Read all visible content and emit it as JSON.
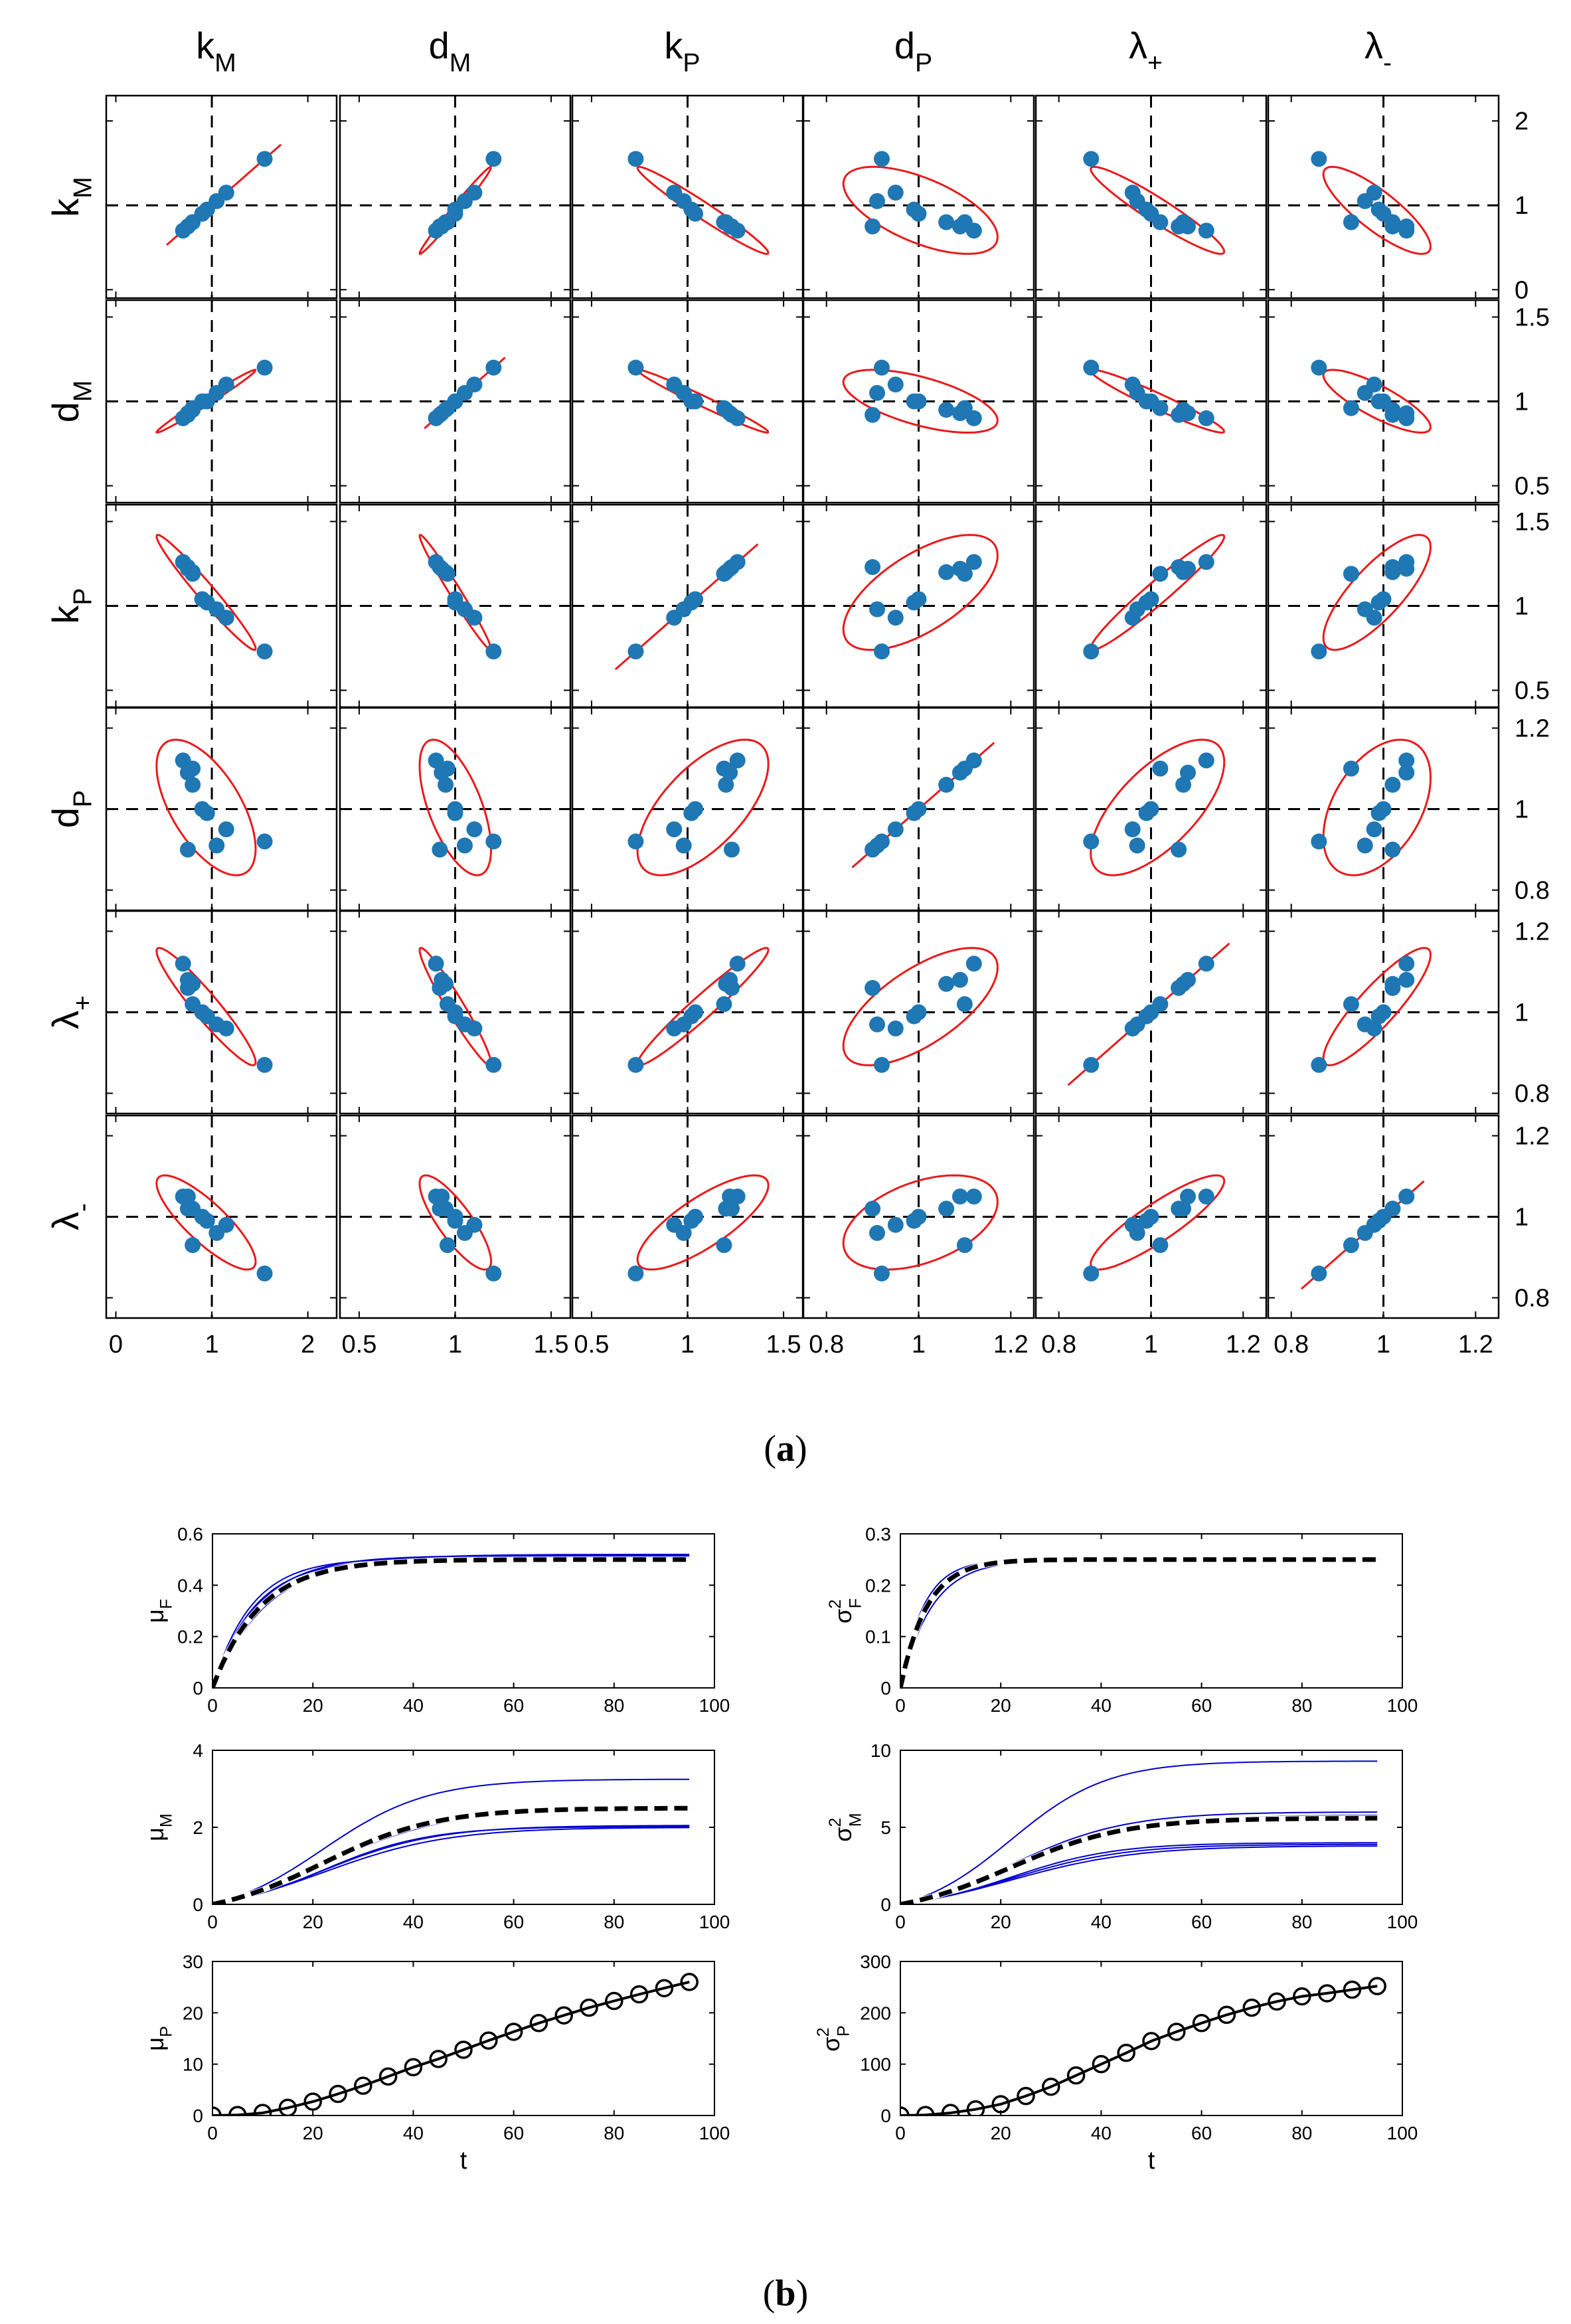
{
  "panel_labels": {
    "a_open": "(",
    "a_letter": "a",
    "a_close": ")",
    "b_open": "(",
    "b_letter": "b",
    "b_close": ")"
  },
  "colors": {
    "points": "#1f77b4",
    "ellipse": "#e8191b",
    "sim_curves": "#0000cc",
    "mean_curve": "#000000"
  },
  "chart_data": [
    {
      "type": "scatter",
      "panel": "a",
      "grid_layout": "6x6 scatter matrix with ellipses, dashed reference lines at 1",
      "params": [
        {
          "base": "k",
          "sub": "M",
          "greek": false
        },
        {
          "base": "d",
          "sub": "M",
          "greek": false
        },
        {
          "base": "k",
          "sub": "P",
          "greek": false
        },
        {
          "base": "d",
          "sub": "P",
          "greek": false
        },
        {
          "base": "λ",
          "sub": "+",
          "greek": true
        },
        {
          "base": "λ",
          "sub": "-",
          "greek": true
        }
      ],
      "ranges": [
        [
          -0.1,
          2.3
        ],
        [
          0.4,
          1.6
        ],
        [
          0.4,
          1.6
        ],
        [
          0.75,
          1.25
        ],
        [
          0.75,
          1.25
        ],
        [
          0.75,
          1.25
        ]
      ],
      "x_ticks": [
        [
          "0",
          "1",
          "2"
        ],
        [
          "0.5",
          "1",
          "1.5"
        ],
        [
          "0.5",
          "1",
          "1.5"
        ],
        [
          "0.8",
          "1",
          "1.2"
        ],
        [
          "0.8",
          "1",
          "1.2"
        ],
        [
          "0.8",
          "1",
          "1.2"
        ]
      ],
      "y_ticks": [
        [
          "0",
          "1",
          "2"
        ],
        [
          "0.5",
          "1",
          "1.5"
        ],
        [
          "0.5",
          "1",
          "1.5"
        ],
        [
          "0.8",
          "1",
          "1.2"
        ],
        [
          "0.8",
          "1",
          "1.2"
        ],
        [
          "0.8",
          "1",
          "1.2"
        ]
      ],
      "samples": [
        [
          1.55,
          1.2,
          0.73,
          0.92,
          0.87,
          0.86
        ],
        [
          1.15,
          1.1,
          0.93,
          0.95,
          0.96,
          0.98
        ],
        [
          1.05,
          1.05,
          0.98,
          0.91,
          0.97,
          0.96
        ],
        [
          0.95,
          1.0,
          1.02,
          0.99,
          0.99,
          0.99
        ],
        [
          0.9,
          1.0,
          1.04,
          1.0,
          1.0,
          1.0
        ],
        [
          0.8,
          0.95,
          1.2,
          1.06,
          1.07,
          1.02
        ],
        [
          0.75,
          0.93,
          1.22,
          1.09,
          1.08,
          1.05
        ],
        [
          0.7,
          0.9,
          1.26,
          1.12,
          1.12,
          1.05
        ],
        [
          0.75,
          0.92,
          1.23,
          0.9,
          1.06,
          1.02
        ],
        [
          0.8,
          0.96,
          1.19,
          1.1,
          1.02,
          0.93
        ]
      ]
    },
    {
      "type": "line",
      "panel": "b",
      "subplots": [
        {
          "ylabel": {
            "base": "μ",
            "sub": "F",
            "sup": ""
          },
          "ylim": [
            0,
            0.6
          ],
          "yticks": [
            "0",
            "0.2",
            "0.4",
            "0.6"
          ],
          "ytick_values": [
            0,
            0.2,
            0.4,
            0.6
          ],
          "xlim": [
            0,
            100
          ],
          "xticks": [
            "0",
            "20",
            "40",
            "60",
            "80",
            "100"
          ],
          "xlabel": "",
          "sim_curves": [
            {
              "plateau": 0.52,
              "rate": 0.09
            },
            {
              "plateau": 0.51,
              "rate": 0.1
            },
            {
              "plateau": 0.515,
              "rate": 0.11
            },
            {
              "plateau": 0.5,
              "rate": 0.12
            },
            {
              "plateau": 0.505,
              "rate": 0.13
            }
          ],
          "mean_curve": {
            "plateau": 0.5,
            "rate": 0.105
          }
        },
        {
          "ylabel": {
            "base": "σ",
            "sub": "F",
            "sup": "2"
          },
          "ylim": [
            0,
            0.3
          ],
          "yticks": [
            "0",
            "0.1",
            "0.2",
            "0.3"
          ],
          "ytick_values": [
            0,
            0.1,
            0.2,
            0.3
          ],
          "xlim": [
            0,
            100
          ],
          "xticks": [
            "0",
            "20",
            "40",
            "60",
            "80",
            "100"
          ],
          "xlabel": "",
          "sim_curves": [
            {
              "plateau": 0.25,
              "rate": 0.16
            },
            {
              "plateau": 0.25,
              "rate": 0.18
            },
            {
              "plateau": 0.25,
              "rate": 0.2
            },
            {
              "plateau": 0.25,
              "rate": 0.22
            }
          ],
          "mean_curve": {
            "plateau": 0.25,
            "rate": 0.19
          }
        },
        {
          "ylabel": {
            "base": "μ",
            "sub": "M",
            "sup": ""
          },
          "ylim": [
            0,
            4
          ],
          "yticks": [
            "0",
            "2",
            "4"
          ],
          "ytick_values": [
            0,
            2,
            4
          ],
          "xlim": [
            0,
            100
          ],
          "xticks": [
            "0",
            "20",
            "40",
            "60",
            "80",
            "100"
          ],
          "xlabel": "",
          "sim_curves": [
            {
              "plateau": 3.25,
              "rate": 0.06
            },
            {
              "plateau": 2.55,
              "rate": 0.055
            },
            {
              "plateau": 2.5,
              "rate": 0.05
            },
            {
              "plateau": 2.05,
              "rate": 0.055
            },
            {
              "plateau": 2.0,
              "rate": 0.05
            },
            {
              "plateau": 2.02,
              "rate": 0.06
            }
          ],
          "mean_curve": {
            "plateau": 2.5,
            "rate": 0.055
          }
        },
        {
          "ylabel": {
            "base": "σ",
            "sub": "M",
            "sup": "2"
          },
          "ylim": [
            0,
            10
          ],
          "yticks": [
            "0",
            "5",
            "10"
          ],
          "ytick_values": [
            0,
            5,
            10
          ],
          "xlim": [
            0,
            100
          ],
          "xticks": [
            "0",
            "20",
            "40",
            "60",
            "80",
            "100"
          ],
          "xlabel": "",
          "sim_curves": [
            {
              "plateau": 9.3,
              "rate": 0.065
            },
            {
              "plateau": 6.0,
              "rate": 0.055
            },
            {
              "plateau": 5.8,
              "rate": 0.05
            },
            {
              "plateau": 3.9,
              "rate": 0.055
            },
            {
              "plateau": 3.8,
              "rate": 0.05
            },
            {
              "plateau": 4.0,
              "rate": 0.06
            }
          ],
          "mean_curve": {
            "plateau": 5.6,
            "rate": 0.055
          }
        },
        {
          "ylabel": {
            "base": "μ",
            "sub": "P",
            "sup": ""
          },
          "ylim": [
            0,
            30
          ],
          "yticks": [
            "0",
            "10",
            "20",
            "30"
          ],
          "ytick_values": [
            0,
            10,
            20,
            30
          ],
          "xlim": [
            0,
            100
          ],
          "xticks": [
            "0",
            "20",
            "40",
            "60",
            "80",
            "100"
          ],
          "xlabel": "t",
          "markers_x": [
            0,
            5,
            10,
            15,
            20,
            25,
            30,
            35,
            40,
            45,
            50,
            55,
            60,
            65,
            70,
            75,
            80,
            85,
            90,
            95
          ],
          "markers_y": [
            0,
            0.1,
            0.5,
            1.5,
            2.7,
            4.2,
            5.8,
            7.6,
            9.4,
            11.0,
            12.8,
            14.6,
            16.3,
            18.0,
            19.5,
            21.0,
            22.3,
            23.6,
            24.8,
            26.0
          ]
        },
        {
          "ylabel": {
            "base": "σ",
            "sub": "P",
            "sup": "2"
          },
          "ylim": [
            0,
            300
          ],
          "yticks": [
            "0",
            "100",
            "200",
            "300"
          ],
          "ytick_values": [
            0,
            100,
            200,
            300
          ],
          "xlim": [
            0,
            100
          ],
          "xticks": [
            "0",
            "20",
            "40",
            "60",
            "80",
            "100"
          ],
          "xlabel": "t",
          "markers_x": [
            0,
            5,
            10,
            15,
            20,
            25,
            30,
            35,
            40,
            45,
            50,
            55,
            60,
            65,
            70,
            75,
            80,
            85,
            90,
            95
          ],
          "markers_y": [
            0,
            1,
            5,
            12,
            22,
            38,
            56,
            78,
            100,
            122,
            145,
            163,
            180,
            196,
            210,
            222,
            232,
            238,
            245,
            252
          ]
        }
      ]
    }
  ]
}
